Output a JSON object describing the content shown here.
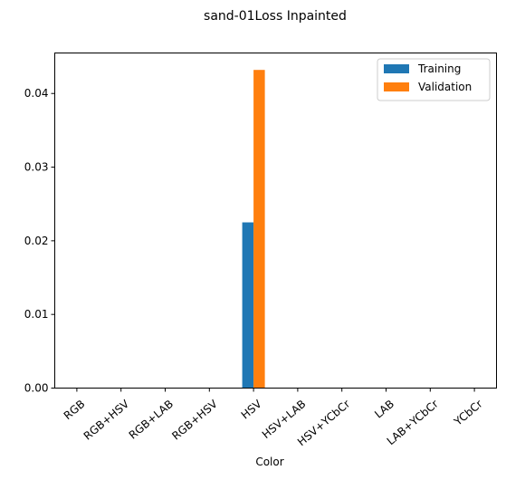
{
  "chart_data": {
    "type": "bar",
    "title": "sand-01Loss Inpainted",
    "xlabel": "Color",
    "ylabel": "",
    "categories": [
      "RGB",
      "RGB+HSV",
      "RGB+LAB",
      "RGB+HSV",
      "HSV",
      "HSV+LAB",
      "HSV+YCbCr",
      "LAB",
      "LAB+YCbCr",
      "YCbCr"
    ],
    "series": [
      {
        "name": "Training",
        "color": "#1f77b4",
        "values": [
          0,
          0,
          0,
          0,
          0.0225,
          0,
          0,
          0,
          0,
          0
        ]
      },
      {
        "name": "Validation",
        "color": "#ff7f0e",
        "values": [
          0,
          0,
          0,
          0,
          0.0432,
          0,
          0,
          0,
          0,
          0
        ]
      }
    ],
    "ylim": [
      0,
      0.0455
    ],
    "yticks": [
      0.0,
      0.01,
      0.02,
      0.03,
      0.04
    ],
    "ytick_labels": [
      "0.00",
      "0.01",
      "0.02",
      "0.03",
      "0.04"
    ],
    "grid": false,
    "legend_position": "top-right"
  }
}
